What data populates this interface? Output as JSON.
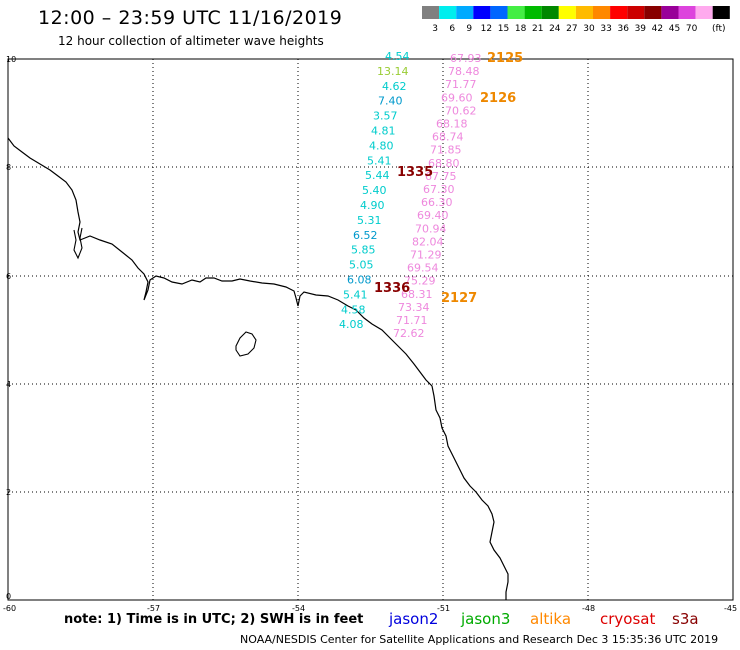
{
  "header": {
    "title": "12:00 – 23:59 UTC 11/16/2019",
    "subtitle": "12 hour collection of altimeter wave heights"
  },
  "legend": {
    "unit": "(ft)",
    "ticks": [
      "3",
      "6",
      "9",
      "12",
      "15",
      "18",
      "21",
      "24",
      "27",
      "30",
      "33",
      "36",
      "39",
      "42",
      "45",
      "70"
    ],
    "colors": [
      "#808080",
      "#00eeee",
      "#00aaff",
      "#0000ff",
      "#0066ff",
      "#44ee44",
      "#00bb00",
      "#008800",
      "#ffff00",
      "#ffbb00",
      "#ff8800",
      "#ff0000",
      "#cc0000",
      "#880000",
      "#990099",
      "#dd44dd",
      "#ffaaee",
      "#000000"
    ]
  },
  "axes": {
    "lat_labels": [
      "10",
      "8",
      "6",
      "4",
      "2",
      "0"
    ],
    "lon_labels": [
      "-60",
      "-57",
      "-54",
      "-51",
      "-48",
      "-45"
    ]
  },
  "tracks": [
    {
      "name": "track-cyan",
      "values": [
        "4.54",
        "13.14",
        "4.62",
        "7.40",
        "3.57",
        "4.81",
        "4.80",
        "5.41",
        "5.44",
        "5.40",
        "4.90",
        "5.31",
        "6.52",
        "5.85",
        "5.05",
        "6.08",
        "5.41",
        "4.58",
        "4.08"
      ],
      "colors": [
        "#00cccc",
        "#99cc33",
        "#00cccc",
        "#0099cc",
        "#00cccc",
        "#00cccc",
        "#00cccc",
        "#00cccc",
        "#00cccc",
        "#00cccc",
        "#00cccc",
        "#00cccc",
        "#0099cc",
        "#00cccc",
        "#00cccc",
        "#0099cc",
        "#00cccc",
        "#00cccc",
        "#00cccc"
      ]
    },
    {
      "name": "track-pink",
      "values": [
        "67.93",
        "78.48",
        "71.77",
        "69.60",
        "70.62",
        "68.18",
        "68.74",
        "71.85",
        "68.80",
        "67.75",
        "67.30",
        "66.30",
        "69.40",
        "70.94",
        "82.04",
        "71.29",
        "69.54",
        "75.29",
        "68.31",
        "73.34",
        "71.71",
        "72.62"
      ],
      "color": "#ee88dd"
    }
  ],
  "pass_labels": [
    {
      "text": "2125",
      "color": "#ee8800"
    },
    {
      "text": "2126",
      "color": "#ee8800"
    },
    {
      "text": "1335",
      "color": "#880000"
    },
    {
      "text": "1336",
      "color": "#880000"
    },
    {
      "text": "2127",
      "color": "#ee8800"
    }
  ],
  "note": "note:  1) Time is in UTC;  2) SWH is in feet",
  "satellites": [
    {
      "name": "jason2",
      "color": "#0000dd"
    },
    {
      "name": "jason3",
      "color": "#00aa00"
    },
    {
      "name": "altika",
      "color": "#ff8800"
    },
    {
      "name": "cryosat",
      "color": "#dd0000"
    },
    {
      "name": "s3a",
      "color": "#880000"
    }
  ],
  "footer": "NOAA/NESDIS Center for Satellite Applications and Research     Dec  3 15:35:36 UTC 2019"
}
